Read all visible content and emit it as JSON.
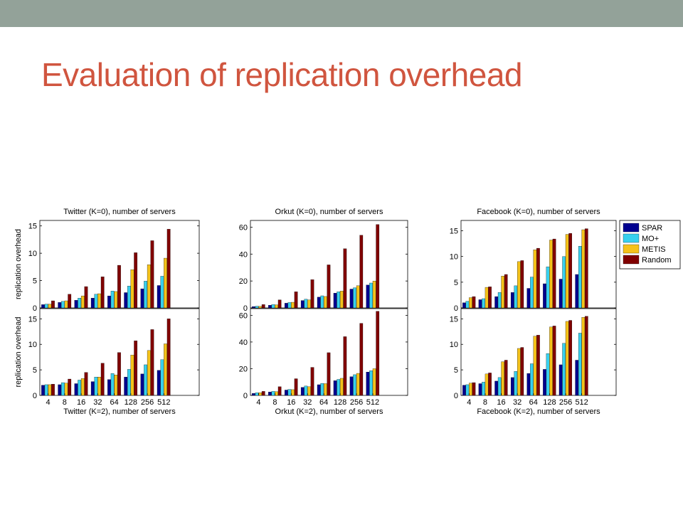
{
  "slide": {
    "title": "Evaluation of replication overhead"
  },
  "colors": {
    "title": "#d0553f",
    "band": "#93a299"
  },
  "legend": {
    "placement": "right of top-right panel",
    "entries": [
      {
        "name": "SPAR",
        "color": "#00008f"
      },
      {
        "name": "MO+",
        "color": "#38d0ee"
      },
      {
        "name": "METIS",
        "color": "#f5c21a"
      },
      {
        "name": "Random",
        "color": "#800000"
      }
    ]
  },
  "chart_data": [
    {
      "type": "bar",
      "title": "Twitter (K=0), number of servers",
      "xlabel": "",
      "ylabel": "replication overhead",
      "categories": [
        "4",
        "8",
        "16",
        "32",
        "64",
        "128",
        "256",
        "512"
      ],
      "ylim": [
        0,
        16
      ],
      "yticks": [
        0,
        5,
        10,
        15
      ],
      "grid": false,
      "series": [
        {
          "name": "SPAR",
          "values": [
            0.6,
            1.0,
            1.4,
            1.8,
            2.2,
            2.8,
            3.5,
            4.1
          ]
        },
        {
          "name": "MO+",
          "values": [
            0.7,
            1.2,
            1.8,
            2.5,
            3.1,
            4.0,
            4.9,
            5.8
          ]
        },
        {
          "name": "METIS",
          "values": [
            0.7,
            1.3,
            2.2,
            2.6,
            3.0,
            7.0,
            7.9,
            9.1
          ]
        },
        {
          "name": "Random",
          "values": [
            1.3,
            2.5,
            3.9,
            5.7,
            7.8,
            10.1,
            12.3,
            14.4
          ]
        }
      ]
    },
    {
      "type": "bar",
      "title": "Orkut (K=0), number of servers",
      "xlabel": "",
      "ylabel": "",
      "categories": [
        "4",
        "8",
        "16",
        "32",
        "64",
        "128",
        "256",
        "512"
      ],
      "ylim": [
        0,
        65
      ],
      "yticks": [
        0,
        20,
        40,
        60
      ],
      "grid": false,
      "series": [
        {
          "name": "SPAR",
          "values": [
            1.0,
            2.0,
            3.5,
            5.5,
            8.0,
            11.0,
            14.0,
            17.0
          ]
        },
        {
          "name": "MO+",
          "values": [
            1.3,
            2.5,
            4.0,
            6.5,
            9.0,
            12.0,
            15.0,
            18.5
          ]
        },
        {
          "name": "METIS",
          "values": [
            1.2,
            2.3,
            4.2,
            6.0,
            8.5,
            12.5,
            16.5,
            20.0
          ]
        },
        {
          "name": "Random",
          "values": [
            2.5,
            6.0,
            12.0,
            21.0,
            32.0,
            44.0,
            54.0,
            62.0
          ]
        }
      ]
    },
    {
      "type": "bar",
      "title": "Facebook (K=0), number of servers",
      "xlabel": "",
      "ylabel": "",
      "categories": [
        "4",
        "8",
        "16",
        "32",
        "64",
        "128",
        "256",
        "512"
      ],
      "ylim": [
        0,
        17
      ],
      "yticks": [
        0,
        5,
        10,
        15
      ],
      "grid": false,
      "series": [
        {
          "name": "SPAR",
          "values": [
            1.0,
            1.6,
            2.2,
            3.0,
            3.8,
            4.7,
            5.6,
            6.5
          ]
        },
        {
          "name": "MO+",
          "values": [
            1.3,
            1.8,
            3.0,
            4.3,
            6.0,
            8.0,
            10.0,
            12.0
          ]
        },
        {
          "name": "METIS",
          "values": [
            2.0,
            4.0,
            6.2,
            9.0,
            11.3,
            13.2,
            14.3,
            15.2
          ]
        },
        {
          "name": "Random",
          "values": [
            2.2,
            4.1,
            6.5,
            9.2,
            11.6,
            13.4,
            14.5,
            15.4
          ]
        }
      ]
    },
    {
      "type": "bar",
      "title": "",
      "xlabel": "Twitter (K=2), number of servers",
      "ylabel": "replication overhead",
      "categories": [
        "4",
        "8",
        "16",
        "32",
        "64",
        "128",
        "256",
        "512"
      ],
      "ylim": [
        0,
        17
      ],
      "yticks": [
        0,
        5,
        10,
        15
      ],
      "grid": false,
      "series": [
        {
          "name": "SPAR",
          "values": [
            2.0,
            2.1,
            2.3,
            2.7,
            3.1,
            3.6,
            4.2,
            4.9
          ]
        },
        {
          "name": "MO+",
          "values": [
            2.1,
            2.5,
            3.0,
            3.6,
            4.3,
            5.1,
            6.0,
            7.0
          ]
        },
        {
          "name": "METIS",
          "values": [
            2.1,
            2.4,
            3.3,
            3.6,
            4.0,
            7.9,
            8.8,
            10.1
          ]
        },
        {
          "name": "Random",
          "values": [
            2.2,
            3.2,
            4.5,
            6.3,
            8.4,
            10.7,
            12.9,
            15.0
          ]
        }
      ]
    },
    {
      "type": "bar",
      "title": "",
      "xlabel": "Orkut (K=2), number of servers",
      "ylabel": "",
      "categories": [
        "4",
        "8",
        "16",
        "32",
        "64",
        "128",
        "256",
        "512"
      ],
      "ylim": [
        0,
        65
      ],
      "yticks": [
        0,
        20,
        40,
        60
      ],
      "grid": false,
      "series": [
        {
          "name": "SPAR",
          "values": [
            1.5,
            2.5,
            4.0,
            6.0,
            8.0,
            11.0,
            14.0,
            17.5
          ]
        },
        {
          "name": "MO+",
          "values": [
            2.0,
            3.0,
            4.5,
            7.0,
            9.0,
            12.0,
            15.5,
            18.5
          ]
        },
        {
          "name": "METIS",
          "values": [
            2.0,
            2.8,
            4.3,
            6.5,
            8.8,
            12.8,
            16.5,
            20.0
          ]
        },
        {
          "name": "Random",
          "values": [
            3.0,
            6.5,
            12.5,
            21.0,
            32.0,
            44.0,
            54.0,
            63.0
          ]
        }
      ]
    },
    {
      "type": "bar",
      "title": "",
      "xlabel": "Facebook (K=2), number of servers",
      "ylabel": "",
      "categories": [
        "4",
        "8",
        "16",
        "32",
        "64",
        "128",
        "256",
        "512"
      ],
      "ylim": [
        0,
        17
      ],
      "yticks": [
        0,
        5,
        10,
        15
      ],
      "grid": false,
      "series": [
        {
          "name": "SPAR",
          "values": [
            2.0,
            2.3,
            2.8,
            3.5,
            4.3,
            5.1,
            6.0,
            6.9
          ]
        },
        {
          "name": "MO+",
          "values": [
            2.1,
            2.6,
            3.5,
            4.7,
            6.2,
            8.2,
            10.2,
            12.2
          ]
        },
        {
          "name": "METIS",
          "values": [
            2.4,
            4.2,
            6.6,
            9.2,
            11.6,
            13.4,
            14.5,
            15.3
          ]
        },
        {
          "name": "Random",
          "values": [
            2.5,
            4.4,
            6.9,
            9.4,
            11.8,
            13.6,
            14.7,
            15.5
          ]
        }
      ]
    }
  ]
}
